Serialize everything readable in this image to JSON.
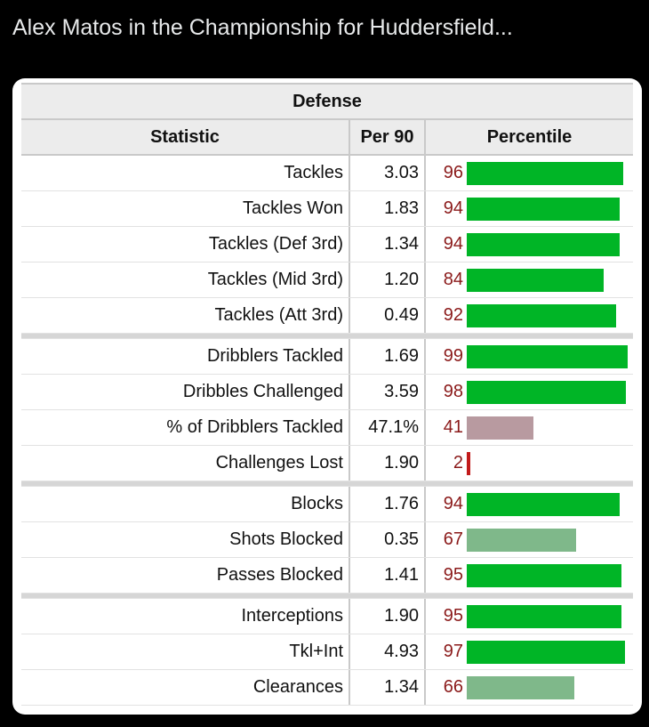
{
  "post": {
    "title": "Alex Matos in the Championship for Huddersfield..."
  },
  "table": {
    "section_title": "Defense",
    "headers": {
      "statistic": "Statistic",
      "per90": "Per 90",
      "percentile": "Percentile"
    },
    "colors": {
      "high": "#00b526",
      "mid": "#7fb88a",
      "low": "#b89aa0",
      "very_low": "#c21a1a"
    },
    "groups": [
      [
        {
          "stat": "Tackles",
          "per90": "3.03",
          "pct": "96",
          "pct_value": 96,
          "bar": "high"
        },
        {
          "stat": "Tackles Won",
          "per90": "1.83",
          "pct": "94",
          "pct_value": 94,
          "bar": "high"
        },
        {
          "stat": "Tackles (Def 3rd)",
          "per90": "1.34",
          "pct": "94",
          "pct_value": 94,
          "bar": "high"
        },
        {
          "stat": "Tackles (Mid 3rd)",
          "per90": "1.20",
          "pct": "84",
          "pct_value": 84,
          "bar": "high"
        },
        {
          "stat": "Tackles (Att 3rd)",
          "per90": "0.49",
          "pct": "92",
          "pct_value": 92,
          "bar": "high"
        }
      ],
      [
        {
          "stat": "Dribblers Tackled",
          "per90": "1.69",
          "pct": "99",
          "pct_value": 99,
          "bar": "high"
        },
        {
          "stat": "Dribbles Challenged",
          "per90": "3.59",
          "pct": "98",
          "pct_value": 98,
          "bar": "high"
        },
        {
          "stat": "% of Dribblers Tackled",
          "per90": "47.1%",
          "pct": "41",
          "pct_value": 41,
          "bar": "low"
        },
        {
          "stat": "Challenges Lost",
          "per90": "1.90",
          "pct": "2",
          "pct_value": 2,
          "bar": "very_low"
        }
      ],
      [
        {
          "stat": "Blocks",
          "per90": "1.76",
          "pct": "94",
          "pct_value": 94,
          "bar": "high"
        },
        {
          "stat": "Shots Blocked",
          "per90": "0.35",
          "pct": "67",
          "pct_value": 67,
          "bar": "mid"
        },
        {
          "stat": "Passes Blocked",
          "per90": "1.41",
          "pct": "95",
          "pct_value": 95,
          "bar": "high"
        }
      ],
      [
        {
          "stat": "Interceptions",
          "per90": "1.90",
          "pct": "95",
          "pct_value": 95,
          "bar": "high"
        },
        {
          "stat": "Tkl+Int",
          "per90": "4.93",
          "pct": "97",
          "pct_value": 97,
          "bar": "high"
        },
        {
          "stat": "Clearances",
          "per90": "1.34",
          "pct": "66",
          "pct_value": 66,
          "bar": "mid"
        }
      ]
    ]
  }
}
